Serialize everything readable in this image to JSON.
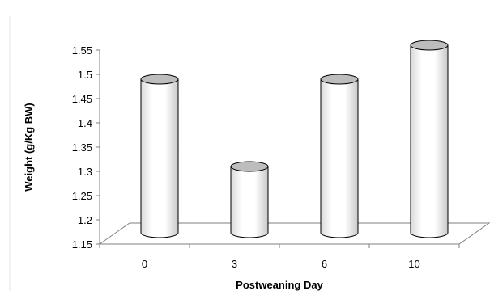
{
  "chart_data": {
    "type": "bar",
    "style": "3d-cylinder",
    "categories": [
      "0",
      "3",
      "6",
      "10"
    ],
    "series": [
      {
        "values": [
          1.48,
          1.3,
          1.48,
          1.55
        ]
      }
    ],
    "xlabel": "Postweaning Day",
    "ylabel": "Weight (g/Kg BW)",
    "ylim": [
      1.15,
      1.55
    ],
    "yticks": [
      "1.15",
      "1.2",
      "1.25",
      "1.3",
      "1.35",
      "1.4",
      "1.45",
      "1.5",
      "1.55"
    ],
    "grid": false,
    "legend": "none",
    "colors": {
      "bar_fill_light": "#ffffff",
      "bar_fill_dark": "#c8c8c8",
      "bar_top": "#bdbdbd",
      "outline": "#000000",
      "floor": "#ffffff",
      "floor_edge": "#7f7f7f",
      "axis": "#7f7f7f"
    }
  }
}
